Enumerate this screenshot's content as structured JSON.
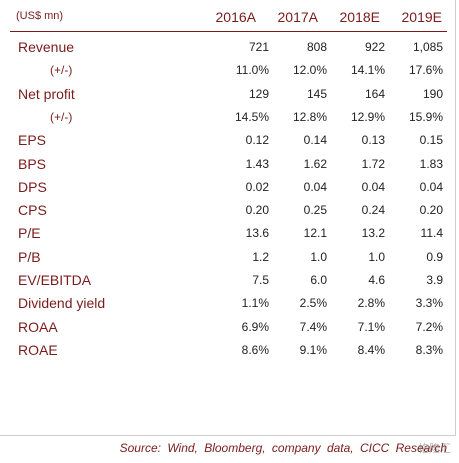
{
  "table": {
    "unit_label": "(US$ mn)",
    "columns": [
      "2016A",
      "2017A",
      "2018E",
      "2019E"
    ],
    "rows": [
      {
        "label": "Revenue",
        "values": [
          "721",
          "808",
          "922",
          "1,085"
        ],
        "indent": false
      },
      {
        "label": "(+/-)",
        "values": [
          "11.0%",
          "12.0%",
          "14.1%",
          "17.6%"
        ],
        "indent": true
      },
      {
        "label": "Net profit",
        "values": [
          "129",
          "145",
          "164",
          "190"
        ],
        "indent": false
      },
      {
        "label": "(+/-)",
        "values": [
          "14.5%",
          "12.8%",
          "12.9%",
          "15.9%"
        ],
        "indent": true
      },
      {
        "label": "EPS",
        "values": [
          "0.12",
          "0.14",
          "0.13",
          "0.15"
        ],
        "indent": false
      },
      {
        "label": "BPS",
        "values": [
          "1.43",
          "1.62",
          "1.72",
          "1.83"
        ],
        "indent": false
      },
      {
        "label": "DPS",
        "values": [
          "0.02",
          "0.04",
          "0.04",
          "0.04"
        ],
        "indent": false
      },
      {
        "label": "CPS",
        "values": [
          "0.20",
          "0.25",
          "0.24",
          "0.20"
        ],
        "indent": false
      },
      {
        "label": "P/E",
        "values": [
          "13.6",
          "12.1",
          "13.2",
          "11.4"
        ],
        "indent": false
      },
      {
        "label": "P/B",
        "values": [
          "1.2",
          "1.0",
          "1.0",
          "0.9"
        ],
        "indent": false
      },
      {
        "label": "EV/EBITDA",
        "values": [
          "7.5",
          "6.0",
          "4.6",
          "3.9"
        ],
        "indent": false
      },
      {
        "label": "Dividend yield",
        "values": [
          "1.1%",
          "2.5%",
          "2.8%",
          "3.3%"
        ],
        "indent": false
      },
      {
        "label": "ROAA",
        "values": [
          "6.9%",
          "7.4%",
          "7.1%",
          "7.2%"
        ],
        "indent": false
      },
      {
        "label": "ROAE",
        "values": [
          "8.6%",
          "9.1%",
          "8.4%",
          "8.3%"
        ],
        "indent": false
      }
    ]
  },
  "source": "Source:  Wind,  Bloomberg,  company  data,  CICC  Research",
  "watermark": "格隆汇",
  "colors": {
    "label": "#7a1c1c",
    "value": "#222222",
    "rule": "#7a1c1c"
  }
}
